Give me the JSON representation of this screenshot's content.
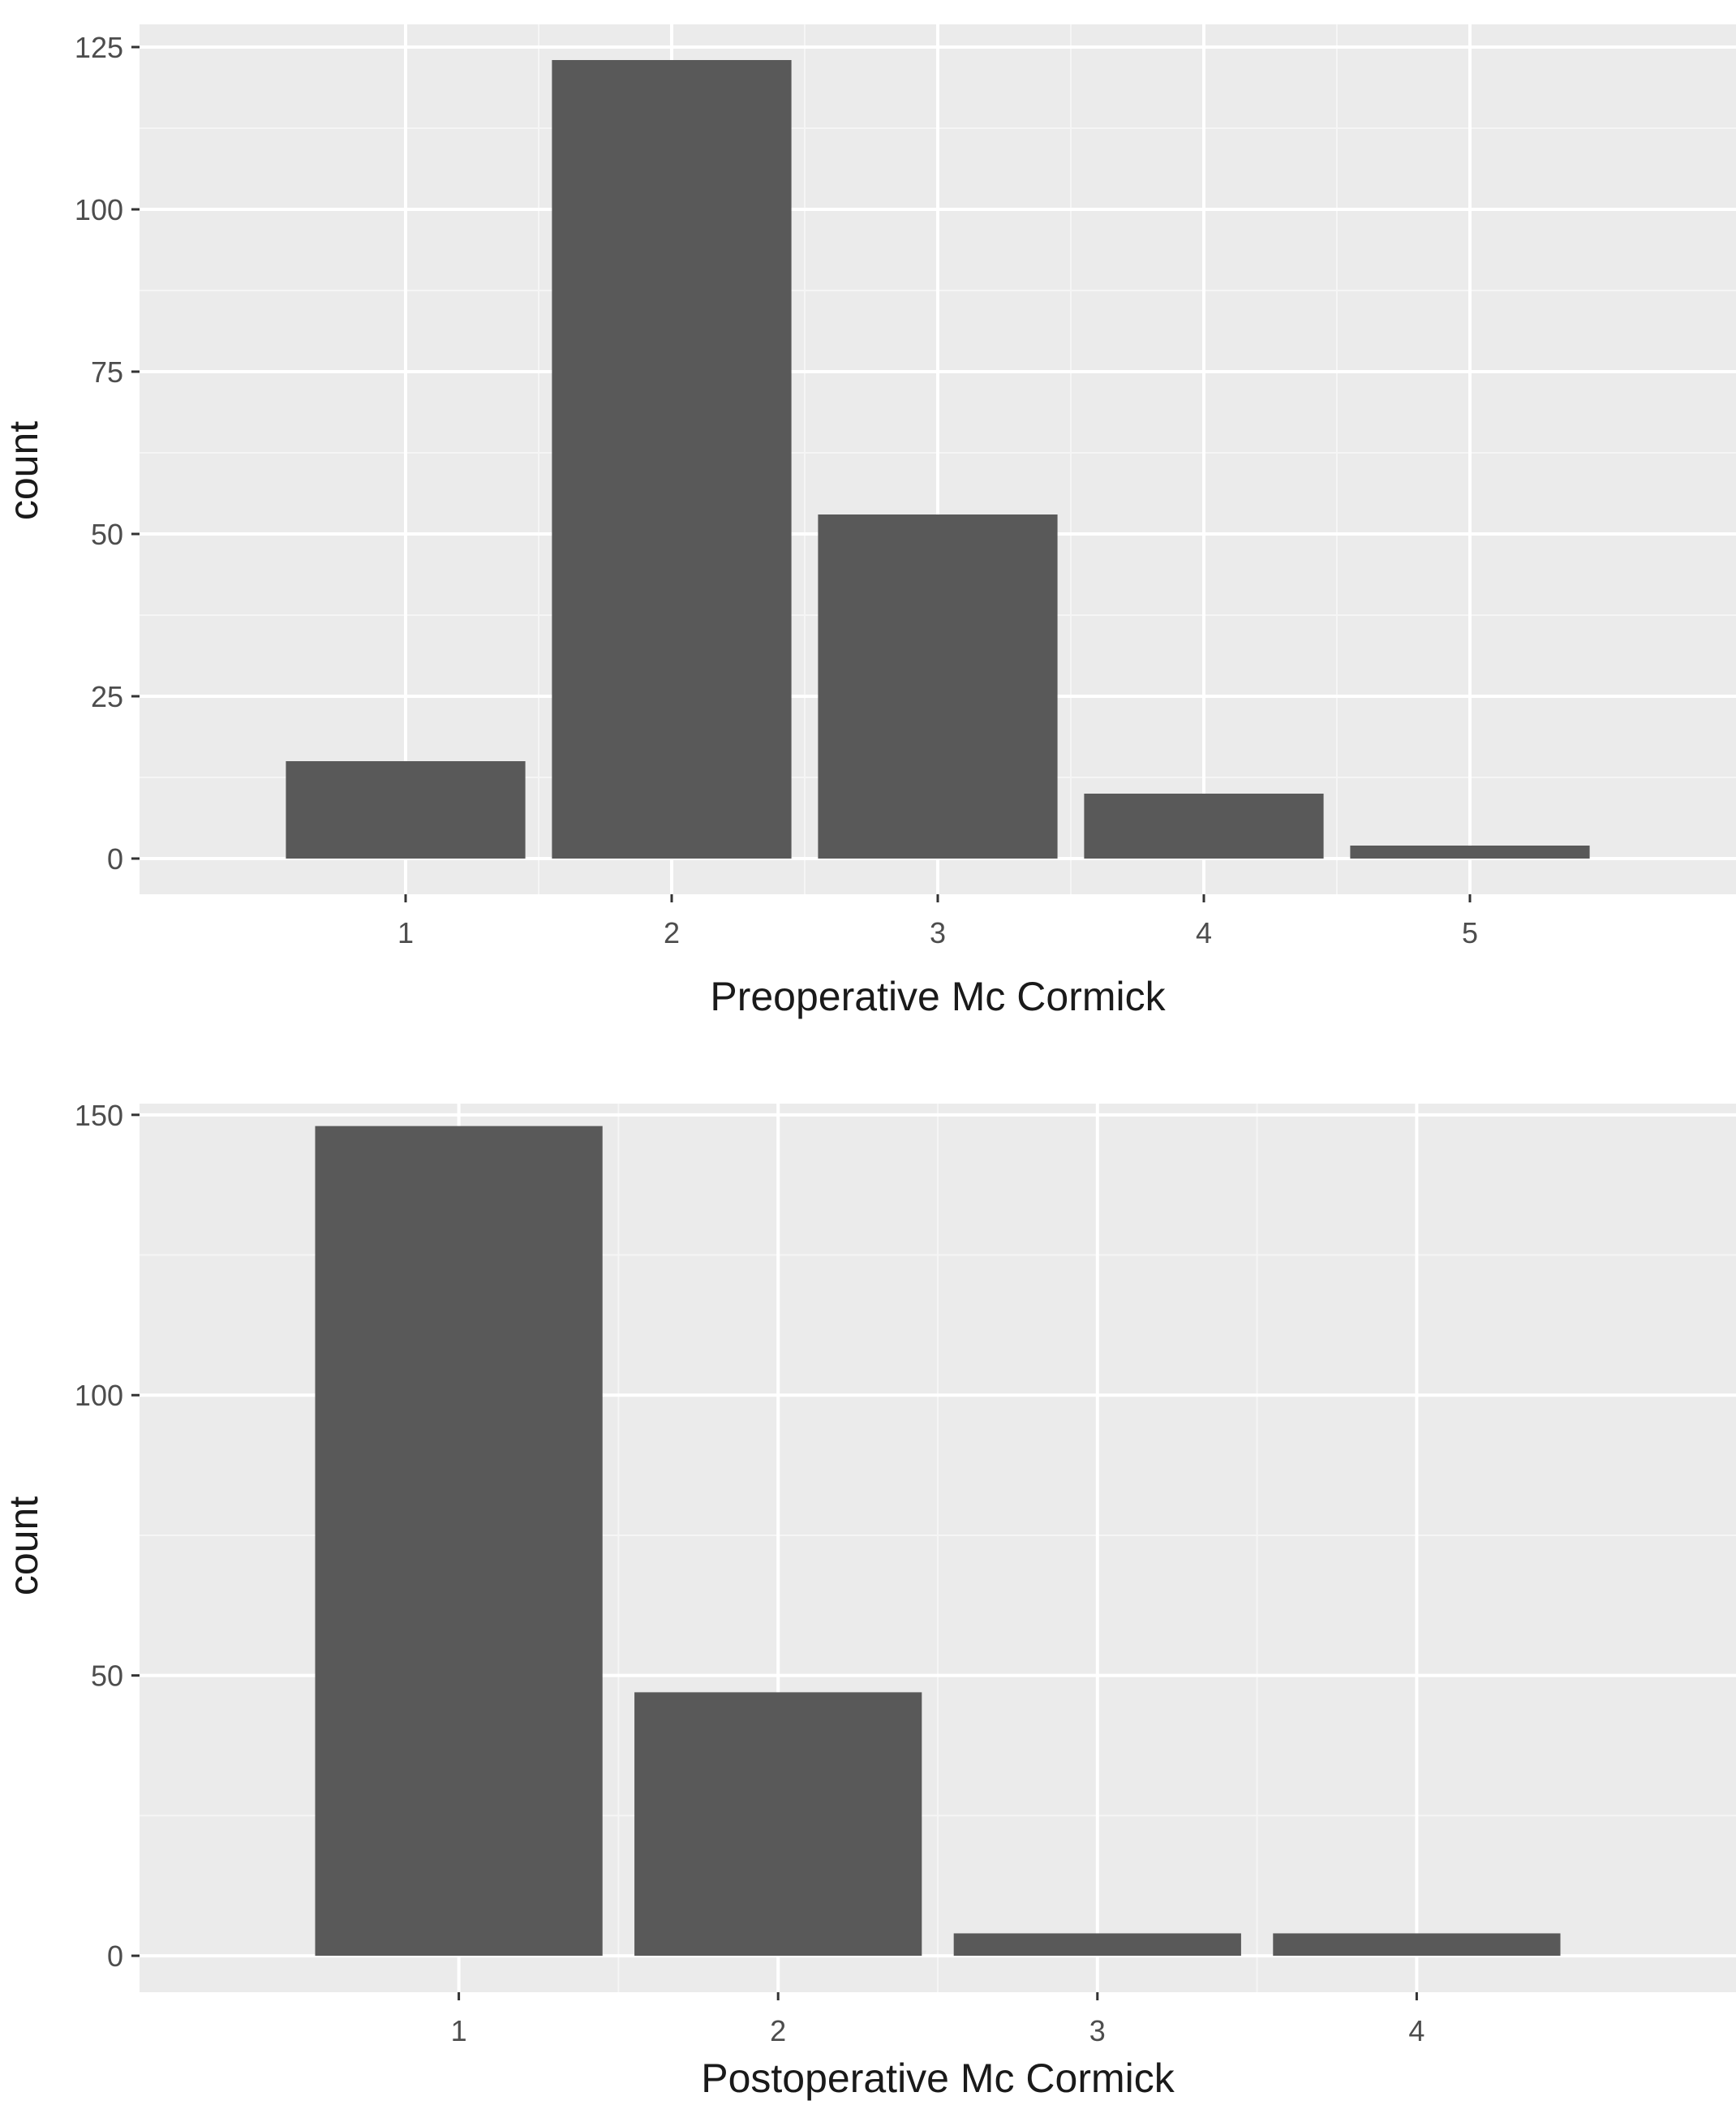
{
  "colors": {
    "panel_background": "#ebebeb",
    "grid_major": "#ffffff",
    "grid_minor": "#f5f5f5",
    "bar_fill": "#595959",
    "tick": "#333333"
  },
  "chart_data": [
    {
      "type": "bar",
      "categories": [
        "1",
        "2",
        "3",
        "4",
        "5"
      ],
      "values": [
        15,
        123,
        53,
        10,
        2
      ],
      "xlabel": "Preoperative Mc Cormick",
      "ylabel": "count",
      "ylim": [
        -5.5,
        128.5
      ],
      "yticks": [
        0,
        25,
        50,
        75,
        100,
        125
      ],
      "ytick_labels": [
        "0",
        "25",
        "50",
        "75",
        "100",
        "125"
      ],
      "grid": true
    },
    {
      "type": "bar",
      "categories": [
        "1",
        "2",
        "3",
        "4"
      ],
      "values": [
        148,
        47,
        4,
        4
      ],
      "xlabel": "Postoperative Mc Cormick",
      "ylabel": "count",
      "ylim": [
        -6.5,
        152
      ],
      "yticks": [
        0,
        50,
        100,
        150
      ],
      "ytick_labels": [
        "0",
        "50",
        "100",
        "150"
      ],
      "grid": true
    }
  ]
}
